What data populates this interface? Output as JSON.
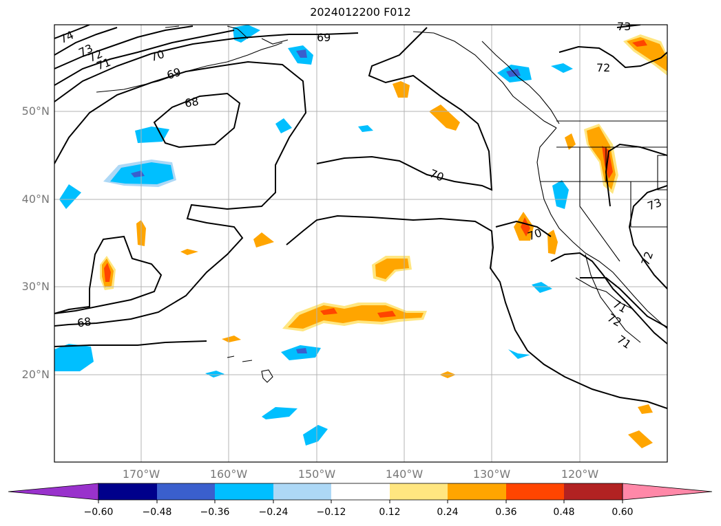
{
  "title": "2024012200 F012",
  "lat_labels": [
    "50°N",
    "40°N",
    "30°N",
    "20°N"
  ],
  "lon_labels": [
    "170°W",
    "160°W",
    "150°W",
    "140°W",
    "130°W",
    "120°W"
  ],
  "contour_labels": [
    "74",
    "73",
    "72",
    "71",
    "70",
    "69",
    "68",
    "69",
    "70",
    "68",
    "70",
    "71",
    "72",
    "73",
    "72",
    "71",
    "72",
    "73"
  ],
  "colorbar": {
    "ticks": [
      "−0.60",
      "−0.48",
      "−0.36",
      "−0.24",
      "−0.12",
      "0.12",
      "0.24",
      "0.36",
      "0.48",
      "0.60"
    ],
    "colors": [
      "#9932cc",
      "#00008b",
      "#3a5fcd",
      "#00bfff",
      "#add8f6",
      "#ffffff",
      "#ffe680",
      "#ffa500",
      "#ff4500",
      "#b22222",
      "#ff88a8"
    ]
  }
}
